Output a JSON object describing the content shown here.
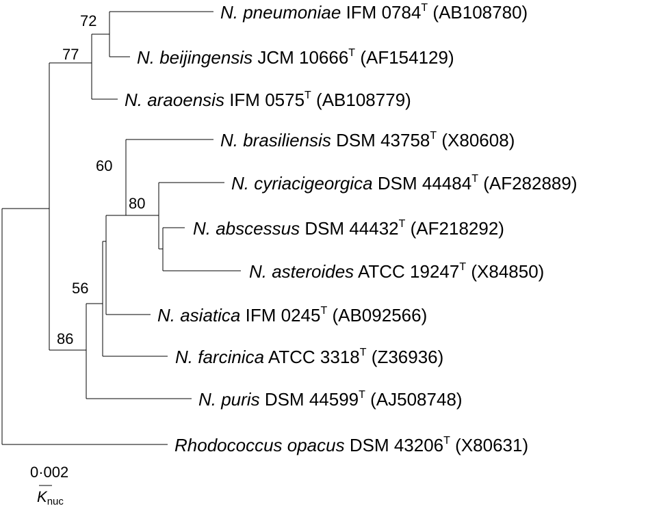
{
  "taxa": [
    {
      "species": "N. pneumoniae",
      "strain": "IFM 0784",
      "superscript": "T",
      "accession": "(AB108780)"
    },
    {
      "species": "N. beijingensis",
      "strain": "JCM 10666",
      "superscript": "T",
      "accession": "(AF154129)"
    },
    {
      "species": "N. araoensis",
      "strain": "IFM 0575",
      "superscript": "T",
      "accession": "(AB108779)"
    },
    {
      "species": "N. brasiliensis",
      "strain": "DSM 43758",
      "superscript": "T",
      "accession": "(X80608)"
    },
    {
      "species": "N. cyriacigeorgica",
      "strain": "DSM 44484",
      "superscript": "T",
      "accession": "(AF282889)"
    },
    {
      "species": "N. abscessus",
      "strain": "DSM 44432",
      "superscript": "T",
      "accession": "(AF218292)"
    },
    {
      "species": "N. asteroides",
      "strain": "ATCC 19247",
      "superscript": "T",
      "accession": "(X84850)"
    },
    {
      "species": "N. asiatica",
      "strain": "IFM 0245",
      "superscript": "T",
      "accession": "(AB092566)"
    },
    {
      "species": "N. farcinica",
      "strain": "ATCC 3318",
      "superscript": "T",
      "accession": "(Z36936)"
    },
    {
      "species": "N. puris",
      "strain": "DSM 44599",
      "superscript": "T",
      "accession": "(AJ508748)"
    },
    {
      "species": "Rhodococcus opacus",
      "strain": "DSM 43206",
      "superscript": "T",
      "accession": "(X80631)"
    }
  ],
  "bootstrap": [
    "72",
    "77",
    "60",
    "80",
    "56",
    "86"
  ],
  "scale": {
    "value": "0·002",
    "label": "K",
    "label_sub": "nuc"
  }
}
